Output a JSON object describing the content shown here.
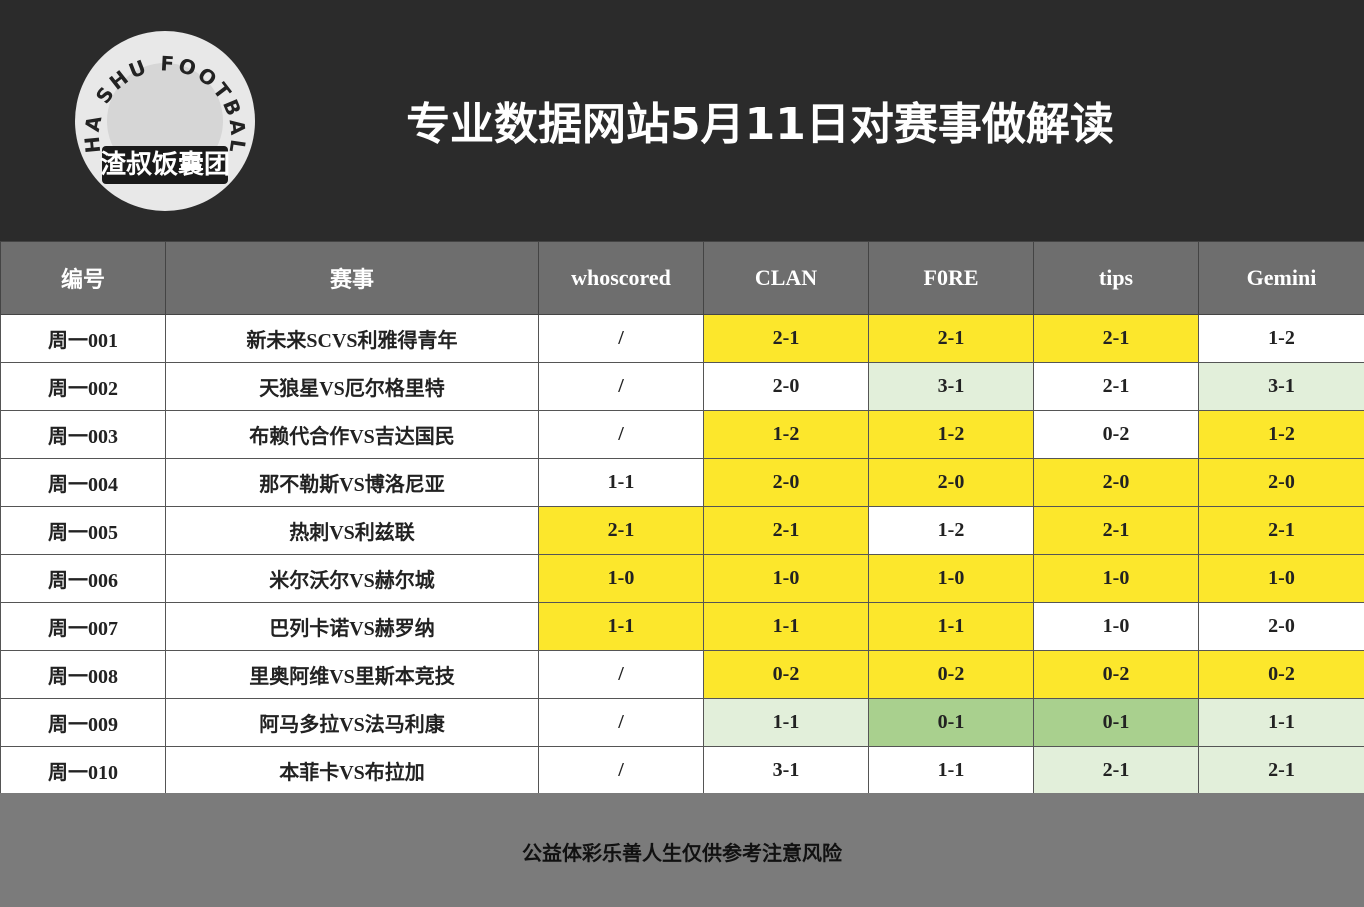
{
  "logo": {
    "arc_text": "ZHA SHU FOOTBALL",
    "name": "渣叔饭囊团"
  },
  "header": {
    "title": "专业数据网站5月11日对赛事做解读"
  },
  "table": {
    "columns": [
      "编号",
      "赛事",
      "whoscored",
      "CLAN",
      "F0RE",
      "tips",
      "Gemini"
    ],
    "rows": [
      [
        "周一001",
        "新未来SCVS利雅得青年",
        "/",
        "2-1",
        "2-1",
        "2-1",
        "1-2"
      ],
      [
        "周一002",
        "天狼星VS厄尔格里特",
        "/",
        "2-0",
        "3-1",
        "2-1",
        "3-1"
      ],
      [
        "周一003",
        "布赖代合作VS吉达国民",
        "/",
        "1-2",
        "1-2",
        "0-2",
        "1-2"
      ],
      [
        "周一004",
        "那不勒斯VS博洛尼亚",
        "1-1",
        "2-0",
        "2-0",
        "2-0",
        "2-0"
      ],
      [
        "周一005",
        "热刺VS利兹联",
        "2-1",
        "2-1",
        "1-2",
        "2-1",
        "2-1"
      ],
      [
        "周一006",
        "米尔沃尔VS赫尔城",
        "1-0",
        "1-0",
        "1-0",
        "1-0",
        "1-0"
      ],
      [
        "周一007",
        "巴列卡诺VS赫罗纳",
        "1-1",
        "1-1",
        "1-1",
        "1-0",
        "2-0"
      ],
      [
        "周一008",
        "里奥阿维VS里斯本竞技",
        "/",
        "0-2",
        "0-2",
        "0-2",
        "0-2"
      ],
      [
        "周一009",
        "阿马多拉VS法马利康",
        "/",
        "1-1",
        "0-1",
        "0-1",
        "1-1"
      ],
      [
        "周一010",
        "本菲卡VS布拉加",
        "/",
        "3-1",
        "1-1",
        "2-1",
        "2-1"
      ]
    ],
    "cell_fills": [
      [
        "#ffffff",
        "#ffffff",
        "#ffffff",
        "#fce72c",
        "#fce72c",
        "#fce72c",
        "#ffffff"
      ],
      [
        "#ffffff",
        "#ffffff",
        "#ffffff",
        "#ffffff",
        "#e2efda",
        "#ffffff",
        "#e2efda"
      ],
      [
        "#ffffff",
        "#ffffff",
        "#ffffff",
        "#fce72c",
        "#fce72c",
        "#ffffff",
        "#fce72c"
      ],
      [
        "#ffffff",
        "#ffffff",
        "#ffffff",
        "#fce72c",
        "#fce72c",
        "#fce72c",
        "#fce72c"
      ],
      [
        "#ffffff",
        "#ffffff",
        "#fce72c",
        "#fce72c",
        "#ffffff",
        "#fce72c",
        "#fce72c"
      ],
      [
        "#ffffff",
        "#ffffff",
        "#fce72c",
        "#fce72c",
        "#fce72c",
        "#fce72c",
        "#fce72c"
      ],
      [
        "#ffffff",
        "#ffffff",
        "#fce72c",
        "#fce72c",
        "#fce72c",
        "#ffffff",
        "#ffffff"
      ],
      [
        "#ffffff",
        "#ffffff",
        "#ffffff",
        "#fce72c",
        "#fce72c",
        "#fce72c",
        "#fce72c"
      ],
      [
        "#ffffff",
        "#ffffff",
        "#ffffff",
        "#e2efda",
        "#a9d08e",
        "#a9d08e",
        "#e2efda"
      ],
      [
        "#ffffff",
        "#ffffff",
        "#ffffff",
        "#ffffff",
        "#ffffff",
        "#e2efda",
        "#e2efda"
      ]
    ]
  },
  "footer": {
    "note": "公益体彩乐善人生仅供参考注意风险"
  }
}
